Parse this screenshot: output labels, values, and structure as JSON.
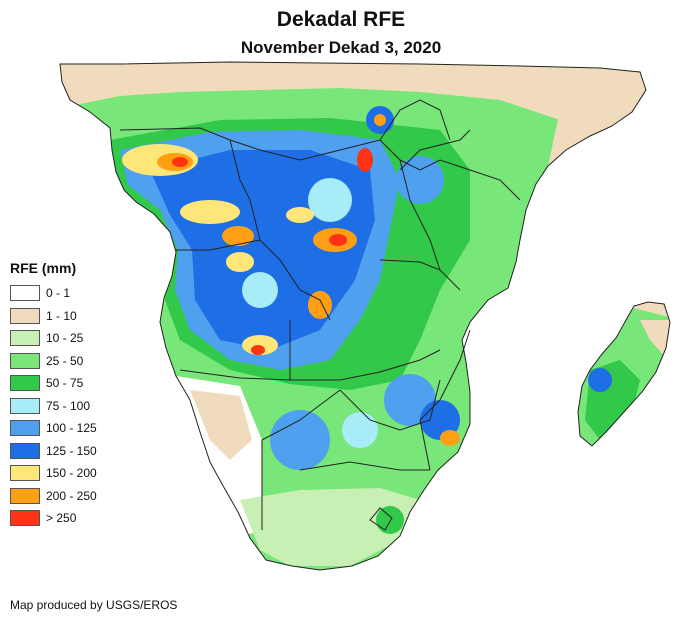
{
  "title": "Dekadal RFE",
  "subtitle": "November Dekad 3, 2020",
  "legend": {
    "title": "RFE (mm)",
    "items": [
      {
        "label": "0 - 1",
        "color": "#ffffff"
      },
      {
        "label": "1 - 10",
        "color": "#f0dcbc"
      },
      {
        "label": "10 - 25",
        "color": "#c8f0b4"
      },
      {
        "label": "25 - 50",
        "color": "#78e678"
      },
      {
        "label": "50 - 75",
        "color": "#32c84a"
      },
      {
        "label": "75 - 100",
        "color": "#a8ecf8"
      },
      {
        "label": "100 - 125",
        "color": "#50a0f0"
      },
      {
        "label": "125 - 150",
        "color": "#1e6ee6"
      },
      {
        "label": "150 - 200",
        "color": "#ffe678"
      },
      {
        "label": "200 - 250",
        "color": "#ffa014"
      },
      {
        "label": "> 250",
        "color": "#ff3214"
      }
    ]
  },
  "credit": "Map produced by USGS/EROS",
  "colors": {
    "border": "#222222",
    "background": "#ffffff"
  }
}
